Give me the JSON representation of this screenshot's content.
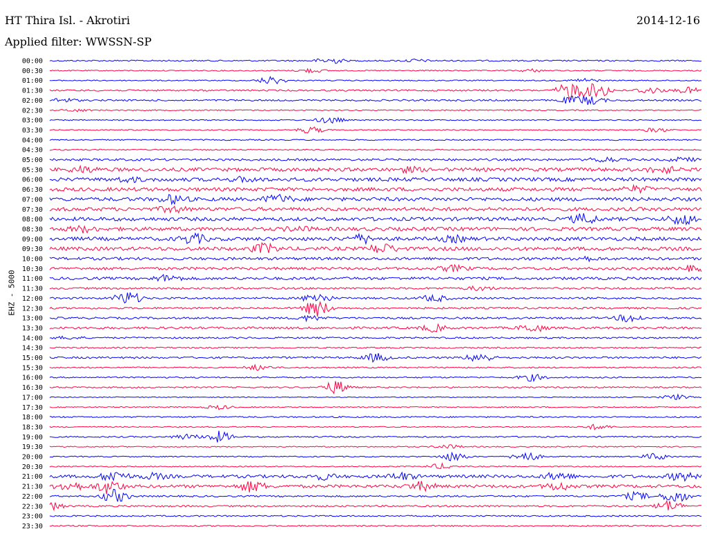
{
  "header": {
    "station": "HT Thira Isl. - Akrotiri",
    "date": "2014-12-16",
    "filter": "Applied filter: WWSSN-SP",
    "channel": "EHZ - 5000"
  },
  "chart_data": {
    "type": "line",
    "title": "HT Thira Isl. - Akrotiri",
    "subtitle": "Applied filter: WWSSN-SP",
    "date": "2014-12-16",
    "ylabel": "EHZ - 5000",
    "grid": false,
    "colors": {
      "even_hour": "#0000ff",
      "half_hour": "#ff0040"
    },
    "rows": [
      {
        "label": "00:00",
        "noise": 1,
        "events": [
          [
            0.43,
            5
          ],
          [
            0.56,
            2
          ]
        ]
      },
      {
        "label": "00:30",
        "noise": 0.8,
        "events": [
          [
            0.4,
            3
          ],
          [
            0.74,
            2
          ]
        ]
      },
      {
        "label": "01:00",
        "noise": 0.8,
        "events": [
          [
            0.34,
            6
          ],
          [
            0.82,
            3
          ]
        ]
      },
      {
        "label": "01:30",
        "noise": 1.2,
        "events": [
          [
            0.8,
            14
          ],
          [
            0.84,
            12
          ],
          [
            0.92,
            5
          ],
          [
            0.98,
            4
          ]
        ]
      },
      {
        "label": "02:00",
        "noise": 1.2,
        "events": [
          [
            0.02,
            3
          ],
          [
            0.8,
            5
          ],
          [
            0.83,
            6
          ]
        ]
      },
      {
        "label": "02:30",
        "noise": 0.8,
        "events": [
          [
            0.04,
            2
          ]
        ]
      },
      {
        "label": "03:00",
        "noise": 0.8,
        "events": [
          [
            0.43,
            5
          ]
        ]
      },
      {
        "label": "03:30",
        "noise": 0.8,
        "events": [
          [
            0.4,
            5
          ],
          [
            0.93,
            3
          ]
        ]
      },
      {
        "label": "04:00",
        "noise": 0.9,
        "events": []
      },
      {
        "label": "04:30",
        "noise": 0.9,
        "events": []
      },
      {
        "label": "05:00",
        "noise": 1.6,
        "events": [
          [
            0.85,
            4
          ],
          [
            0.97,
            3
          ]
        ]
      },
      {
        "label": "05:30",
        "noise": 2.6,
        "events": [
          [
            0.05,
            4
          ],
          [
            0.55,
            3
          ],
          [
            0.94,
            5
          ]
        ]
      },
      {
        "label": "06:00",
        "noise": 2.6,
        "events": [
          [
            0.12,
            3
          ],
          [
            0.3,
            3
          ]
        ]
      },
      {
        "label": "06:30",
        "noise": 2.6,
        "events": [
          [
            0.9,
            4
          ]
        ]
      },
      {
        "label": "07:00",
        "noise": 2.6,
        "events": [
          [
            0.19,
            6
          ],
          [
            0.35,
            6
          ]
        ]
      },
      {
        "label": "07:30",
        "noise": 2.6,
        "events": [
          [
            0.19,
            4
          ]
        ]
      },
      {
        "label": "08:00",
        "noise": 2.6,
        "events": [
          [
            0.82,
            7
          ],
          [
            0.97,
            8
          ]
        ]
      },
      {
        "label": "08:30",
        "noise": 2.6,
        "events": [
          [
            0.05,
            4
          ],
          [
            0.38,
            3
          ]
        ]
      },
      {
        "label": "09:00",
        "noise": 2.6,
        "events": [
          [
            0.22,
            7
          ],
          [
            0.48,
            6
          ],
          [
            0.62,
            4
          ]
        ]
      },
      {
        "label": "09:30",
        "noise": 2.6,
        "events": [
          [
            0.33,
            7
          ],
          [
            0.51,
            7
          ]
        ]
      },
      {
        "label": "10:00",
        "noise": 2.0,
        "events": [
          [
            0.82,
            3
          ]
        ]
      },
      {
        "label": "10:30",
        "noise": 2.0,
        "events": [
          [
            0.62,
            4
          ],
          [
            0.99,
            4
          ]
        ]
      },
      {
        "label": "11:00",
        "noise": 2.0,
        "events": [
          [
            0.18,
            5
          ]
        ]
      },
      {
        "label": "11:30",
        "noise": 1.4,
        "events": [
          [
            0.66,
            3
          ]
        ]
      },
      {
        "label": "12:00",
        "noise": 1.4,
        "events": [
          [
            0.12,
            10
          ],
          [
            0.41,
            8
          ],
          [
            0.59,
            5
          ]
        ]
      },
      {
        "label": "12:30",
        "noise": 1.4,
        "events": [
          [
            0.41,
            12
          ]
        ]
      },
      {
        "label": "13:00",
        "noise": 1.4,
        "events": [
          [
            0.4,
            4
          ],
          [
            0.89,
            6
          ]
        ]
      },
      {
        "label": "13:30",
        "noise": 1.6,
        "events": [
          [
            0.59,
            5
          ],
          [
            0.74,
            6
          ]
        ]
      },
      {
        "label": "14:00",
        "noise": 1.2,
        "events": [
          [
            0.03,
            2
          ]
        ]
      },
      {
        "label": "14:30",
        "noise": 1.0,
        "events": []
      },
      {
        "label": "15:00",
        "noise": 1.4,
        "events": [
          [
            0.5,
            6
          ],
          [
            0.66,
            7
          ]
        ]
      },
      {
        "label": "15:30",
        "noise": 1.0,
        "events": [
          [
            0.32,
            4
          ]
        ]
      },
      {
        "label": "16:00",
        "noise": 1.0,
        "events": [
          [
            0.74,
            5
          ]
        ]
      },
      {
        "label": "16:30",
        "noise": 1.0,
        "events": [
          [
            0.44,
            10
          ]
        ]
      },
      {
        "label": "17:00",
        "noise": 0.6,
        "events": [
          [
            0.96,
            4
          ]
        ]
      },
      {
        "label": "17:30",
        "noise": 0.8,
        "events": [
          [
            0.26,
            3
          ]
        ]
      },
      {
        "label": "18:00",
        "noise": 1.0,
        "events": []
      },
      {
        "label": "18:30",
        "noise": 0.8,
        "events": [
          [
            0.84,
            4
          ]
        ]
      },
      {
        "label": "19:00",
        "noise": 1.0,
        "events": [
          [
            0.21,
            4
          ],
          [
            0.26,
            8
          ]
        ]
      },
      {
        "label": "19:30",
        "noise": 0.8,
        "events": [
          [
            0.61,
            3
          ]
        ]
      },
      {
        "label": "20:00",
        "noise": 0.8,
        "events": [
          [
            0.62,
            7
          ],
          [
            0.73,
            8
          ],
          [
            0.93,
            5
          ]
        ]
      },
      {
        "label": "20:30",
        "noise": 0.8,
        "events": [
          [
            0.6,
            4
          ]
        ]
      },
      {
        "label": "21:00",
        "noise": 2.2,
        "events": [
          [
            0.1,
            8
          ],
          [
            0.16,
            4
          ],
          [
            0.42,
            4
          ],
          [
            0.54,
            5
          ],
          [
            0.78,
            6
          ],
          [
            0.97,
            6
          ]
        ]
      },
      {
        "label": "21:30",
        "noise": 2.2,
        "events": [
          [
            0.03,
            7
          ],
          [
            0.09,
            10
          ],
          [
            0.31,
            8
          ],
          [
            0.57,
            6
          ],
          [
            0.78,
            6
          ]
        ]
      },
      {
        "label": "22:00",
        "noise": 1.2,
        "events": [
          [
            0.1,
            10
          ],
          [
            0.9,
            6
          ],
          [
            0.96,
            10
          ]
        ]
      },
      {
        "label": "22:30",
        "noise": 1.2,
        "events": [
          [
            0.0,
            6
          ],
          [
            0.95,
            8
          ]
        ]
      },
      {
        "label": "23:00",
        "noise": 1.0,
        "events": []
      },
      {
        "label": "23:30",
        "noise": 1.0,
        "events": []
      }
    ]
  }
}
